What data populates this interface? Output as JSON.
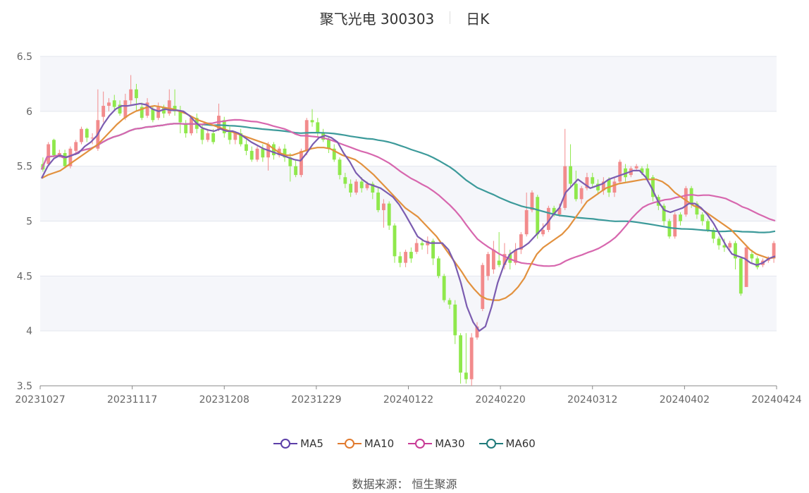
{
  "header": {
    "stock_name": "聚飞光电 300303",
    "period": "日K"
  },
  "source": "数据来源：  恒生聚源",
  "colors": {
    "up": "#f28b8c",
    "down": "#8fe84c",
    "ma5": "#7b5cb0",
    "ma10": "#e2913e",
    "ma30": "#d767ae",
    "ma60": "#3c9a9a"
  },
  "chart_data": {
    "type": "candlestick",
    "y_axis": {
      "min": 3.5,
      "max": 6.5,
      "ticks": [
        "3.5",
        "4",
        "4.5",
        "5",
        "5.5",
        "6",
        "6.5"
      ]
    },
    "x_axis": {
      "ticks": [
        "20231027",
        "20231117",
        "20231208",
        "20231229",
        "20240122",
        "20240220",
        "20240312",
        "20240402",
        "20240424"
      ]
    },
    "grid": "banded",
    "legend": [
      {
        "name": "MA5",
        "color": "#5b3ea8"
      },
      {
        "name": "MA10",
        "color": "#e07a2e"
      },
      {
        "name": "MA30",
        "color": "#c83c96"
      },
      {
        "name": "MA60",
        "color": "#1f7a7a"
      }
    ],
    "candles": [
      [
        5.52,
        5.47,
        5.58,
        5.45
      ],
      [
        5.52,
        5.7,
        5.72,
        5.5
      ],
      [
        5.74,
        5.6,
        5.75,
        5.58
      ],
      [
        5.6,
        5.62,
        5.65,
        5.58
      ],
      [
        5.62,
        5.5,
        5.65,
        5.48
      ],
      [
        5.5,
        5.66,
        5.68,
        5.48
      ],
      [
        5.64,
        5.72,
        5.74,
        5.6
      ],
      [
        5.72,
        5.84,
        5.86,
        5.7
      ],
      [
        5.84,
        5.76,
        5.85,
        5.72
      ],
      [
        5.76,
        5.76,
        5.8,
        5.7
      ],
      [
        5.66,
        5.92,
        6.2,
        5.64
      ],
      [
        5.95,
        6.05,
        6.18,
        5.9
      ],
      [
        6.05,
        6.08,
        6.12,
        6.0
      ],
      [
        6.1,
        6.04,
        6.15,
        6.0
      ],
      [
        6.06,
        5.98,
        6.1,
        5.96
      ],
      [
        5.94,
        6.1,
        6.16,
        5.92
      ],
      [
        6.1,
        6.2,
        6.33,
        6.05
      ],
      [
        6.2,
        6.12,
        6.25,
        6.0
      ],
      [
        6.04,
        5.94,
        6.08,
        5.92
      ],
      [
        5.96,
        6.08,
        6.12,
        5.94
      ],
      [
        6.02,
        5.92,
        6.05,
        5.9
      ],
      [
        5.94,
        6.04,
        6.08,
        5.92
      ],
      [
        6.04,
        5.98,
        6.06,
        5.94
      ],
      [
        5.98,
        6.1,
        6.2,
        5.96
      ],
      [
        6.05,
        6.0,
        6.2,
        5.96
      ],
      [
        6.0,
        5.9,
        6.05,
        5.8
      ],
      [
        5.88,
        5.8,
        5.92,
        5.76
      ],
      [
        5.8,
        5.94,
        5.96,
        5.78
      ],
      [
        5.94,
        5.84,
        5.98,
        5.8
      ],
      [
        5.84,
        5.74,
        5.88,
        5.7
      ],
      [
        5.74,
        5.8,
        5.84,
        5.72
      ],
      [
        5.8,
        5.72,
        5.84,
        5.7
      ],
      [
        5.84,
        5.96,
        6.07,
        5.82
      ],
      [
        5.92,
        5.8,
        5.95,
        5.76
      ],
      [
        5.82,
        5.74,
        5.86,
        5.7
      ],
      [
        5.74,
        5.8,
        5.82,
        5.7
      ],
      [
        5.8,
        5.7,
        5.84,
        5.68
      ],
      [
        5.7,
        5.64,
        5.74,
        5.6
      ],
      [
        5.64,
        5.56,
        5.68,
        5.54
      ],
      [
        5.56,
        5.66,
        5.68,
        5.54
      ],
      [
        5.66,
        5.58,
        5.7,
        5.54
      ],
      [
        5.58,
        5.7,
        5.72,
        5.46
      ],
      [
        5.7,
        5.6,
        5.72,
        5.56
      ],
      [
        5.6,
        5.66,
        5.68,
        5.58
      ],
      [
        5.66,
        5.58,
        5.7,
        5.54
      ],
      [
        5.58,
        5.5,
        5.62,
        5.36
      ],
      [
        5.5,
        5.42,
        5.56,
        5.4
      ],
      [
        5.42,
        5.64,
        5.66,
        5.4
      ],
      [
        5.64,
        5.92,
        5.94,
        5.6
      ],
      [
        5.92,
        5.9,
        6.02,
        5.86
      ],
      [
        5.9,
        5.8,
        5.94,
        5.76
      ],
      [
        5.8,
        5.74,
        5.84,
        5.72
      ],
      [
        5.74,
        5.66,
        5.76,
        5.62
      ],
      [
        5.66,
        5.56,
        5.7,
        5.54
      ],
      [
        5.56,
        5.42,
        5.58,
        5.38
      ],
      [
        5.4,
        5.34,
        5.44,
        5.3
      ],
      [
        5.34,
        5.26,
        5.38,
        5.22
      ],
      [
        5.26,
        5.36,
        5.38,
        5.24
      ],
      [
        5.36,
        5.3,
        5.4,
        5.26
      ],
      [
        5.3,
        5.34,
        5.36,
        5.28
      ],
      [
        5.34,
        5.26,
        5.36,
        5.2
      ],
      [
        5.26,
        5.1,
        5.3,
        5.08
      ],
      [
        5.1,
        5.16,
        5.2,
        4.94
      ],
      [
        5.16,
        4.96,
        5.18,
        4.92
      ],
      [
        4.96,
        4.68,
        4.98,
        4.62
      ],
      [
        4.68,
        4.62,
        4.72,
        4.58
      ],
      [
        4.62,
        4.72,
        4.74,
        4.58
      ],
      [
        4.72,
        4.66,
        4.76,
        4.62
      ],
      [
        4.72,
        4.8,
        4.84,
        4.7
      ],
      [
        4.8,
        4.78,
        4.84,
        4.74
      ],
      [
        4.78,
        4.82,
        4.86,
        4.7
      ],
      [
        4.82,
        4.66,
        4.84,
        4.6
      ],
      [
        4.66,
        4.5,
        4.68,
        4.48
      ],
      [
        4.5,
        4.28,
        4.52,
        4.26
      ],
      [
        4.28,
        4.24,
        4.3,
        4.2
      ],
      [
        4.24,
        3.96,
        4.28,
        3.88
      ],
      [
        3.96,
        3.62,
        3.98,
        3.52
      ],
      [
        3.62,
        3.56,
        3.98,
        3.52
      ],
      [
        3.56,
        3.94,
        3.98,
        3.5
      ],
      [
        3.94,
        4.04,
        4.08,
        3.92
      ],
      [
        4.2,
        4.6,
        4.62,
        4.18
      ],
      [
        4.5,
        4.7,
        4.72,
        4.46
      ],
      [
        4.56,
        4.74,
        4.82,
        4.52
      ],
      [
        4.64,
        4.6,
        4.9,
        4.58
      ],
      [
        4.6,
        4.7,
        4.8,
        4.56
      ],
      [
        4.7,
        4.62,
        4.74,
        4.56
      ],
      [
        4.62,
        4.74,
        4.8,
        4.6
      ],
      [
        4.74,
        4.88,
        4.9,
        4.7
      ],
      [
        4.88,
        5.1,
        5.26,
        4.86
      ],
      [
        5.1,
        5.26,
        5.28,
        5.08
      ],
      [
        5.22,
        4.88,
        5.24,
        4.84
      ],
      [
        4.88,
        4.92,
        4.98,
        4.86
      ],
      [
        4.92,
        5.12,
        5.14,
        4.9
      ],
      [
        5.12,
        5.06,
        5.14,
        5.04
      ],
      [
        5.06,
        5.12,
        5.16,
        5.04
      ],
      [
        5.12,
        5.5,
        5.84,
        5.1
      ],
      [
        5.5,
        5.34,
        5.7,
        5.3
      ],
      [
        5.34,
        5.2,
        5.46,
        5.18
      ],
      [
        5.2,
        5.3,
        5.32,
        5.16
      ],
      [
        5.3,
        5.4,
        5.44,
        5.28
      ],
      [
        5.4,
        5.34,
        5.44,
        5.3
      ],
      [
        5.34,
        5.28,
        5.38,
        5.24
      ],
      [
        5.28,
        5.36,
        5.4,
        5.24
      ],
      [
        5.38,
        5.26,
        5.4,
        5.22
      ],
      [
        5.26,
        5.36,
        5.4,
        5.22
      ],
      [
        5.36,
        5.54,
        5.56,
        5.34
      ],
      [
        5.48,
        5.4,
        5.52,
        5.36
      ],
      [
        5.42,
        5.48,
        5.5,
        5.4
      ],
      [
        5.48,
        5.5,
        5.52,
        5.46
      ],
      [
        5.48,
        5.44,
        5.5,
        5.42
      ],
      [
        5.48,
        5.38,
        5.52,
        5.36
      ],
      [
        5.4,
        5.22,
        5.42,
        5.18
      ],
      [
        5.22,
        5.14,
        5.24,
        5.1
      ],
      [
        5.14,
        5.0,
        5.16,
        4.96
      ],
      [
        5.0,
        4.86,
        5.02,
        4.84
      ],
      [
        4.86,
        5.06,
        5.08,
        4.84
      ],
      [
        5.06,
        5.0,
        5.08,
        4.96
      ],
      [
        5.06,
        5.3,
        5.32,
        5.04
      ],
      [
        5.3,
        5.16,
        5.32,
        5.12
      ],
      [
        5.16,
        5.06,
        5.18,
        5.02
      ],
      [
        5.06,
        5.0,
        5.08,
        4.96
      ],
      [
        5.0,
        4.92,
        5.02,
        4.9
      ],
      [
        4.92,
        4.84,
        4.94,
        4.8
      ],
      [
        4.84,
        4.78,
        4.86,
        4.74
      ],
      [
        4.78,
        4.76,
        4.84,
        4.72
      ],
      [
        4.76,
        4.8,
        4.82,
        4.74
      ],
      [
        4.8,
        4.66,
        4.82,
        4.56
      ],
      [
        4.66,
        4.34,
        4.68,
        4.32
      ],
      [
        4.4,
        4.76,
        4.78,
        4.48
      ],
      [
        4.7,
        4.66,
        4.74,
        4.62
      ],
      [
        4.66,
        4.58,
        4.68,
        4.56
      ],
      [
        4.6,
        4.64,
        4.66,
        4.58
      ],
      [
        4.64,
        4.66,
        4.68,
        4.62
      ],
      [
        4.66,
        4.8,
        4.82,
        4.62
      ]
    ],
    "ma5": [
      5.39,
      5.5,
      5.57,
      5.6,
      5.58,
      5.6,
      5.62,
      5.68,
      5.72,
      5.78,
      5.88,
      5.96,
      6.02,
      6.05,
      6.05,
      6.06,
      6.07,
      6.06,
      6.02,
      6.0,
      6.02,
      6.01,
      6.01,
      6.0,
      5.96,
      5.9,
      5.85,
      5.83,
      5.82,
      5.84,
      5.82,
      5.82,
      5.8,
      5.76,
      5.72,
      5.69,
      5.66,
      5.64,
      5.62,
      5.6,
      5.58,
      5.56,
      5.55,
      5.62,
      5.7,
      5.76,
      5.78,
      5.76,
      5.72,
      5.62,
      5.54,
      5.44,
      5.38,
      5.34,
      5.32,
      5.3,
      5.26,
      5.22,
      5.15,
      5.06,
      4.96,
      4.86,
      4.82,
      4.8,
      4.8,
      4.8,
      4.74,
      4.62,
      4.44,
      4.22,
      4.08,
      4.0,
      4.04,
      4.22,
      4.44,
      4.6,
      4.7,
      4.74,
      4.76,
      4.8,
      4.86,
      4.92,
      4.98,
      5.06,
      5.12,
      5.26,
      5.32,
      5.38,
      5.34,
      5.3,
      5.32,
      5.34,
      5.38,
      5.4,
      5.42,
      5.44,
      5.46,
      5.46,
      5.4,
      5.3,
      5.18,
      5.1,
      5.08,
      5.1,
      5.12,
      5.16,
      5.16,
      5.12,
      5.06,
      4.98,
      4.88,
      4.78,
      4.7,
      4.68,
      4.66,
      4.62,
      4.6,
      4.62,
      4.66,
      4.68
    ],
    "ma10": [
      5.39,
      5.42,
      5.44,
      5.46,
      5.5,
      5.54,
      5.58,
      5.62,
      5.66,
      5.7,
      5.76,
      5.82,
      5.88,
      5.93,
      5.97,
      6.0,
      6.02,
      6.04,
      6.05,
      6.04,
      6.03,
      6.02,
      6.0,
      5.98,
      5.95,
      5.92,
      5.9,
      5.88,
      5.86,
      5.84,
      5.82,
      5.8,
      5.78,
      5.76,
      5.74,
      5.72,
      5.7,
      5.66,
      5.62,
      5.6,
      5.6,
      5.62,
      5.64,
      5.66,
      5.67,
      5.67,
      5.66,
      5.63,
      5.6,
      5.58,
      5.56,
      5.52,
      5.47,
      5.42,
      5.36,
      5.3,
      5.24,
      5.18,
      5.12,
      5.08,
      5.04,
      4.98,
      4.92,
      4.86,
      4.78,
      4.7,
      4.62,
      4.54,
      4.45,
      4.38,
      4.32,
      4.29,
      4.28,
      4.28,
      4.3,
      4.34,
      4.4,
      4.48,
      4.6,
      4.7,
      4.76,
      4.8,
      4.84,
      4.88,
      4.94,
      5.02,
      5.1,
      5.18,
      5.22,
      5.26,
      5.3,
      5.32,
      5.34,
      5.35,
      5.36,
      5.37,
      5.38,
      5.38,
      5.38,
      5.36,
      5.32,
      5.26,
      5.22,
      5.18,
      5.14,
      5.12,
      5.08,
      5.04,
      5.0,
      4.96,
      4.92,
      4.86,
      4.8,
      4.74,
      4.7,
      4.68,
      4.66,
      4.67
    ]
  }
}
